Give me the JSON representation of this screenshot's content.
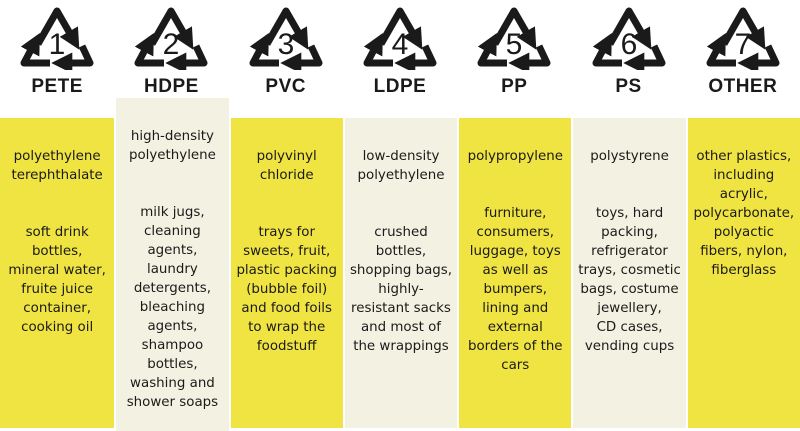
{
  "colors": {
    "yellow": "#f0e442",
    "light": "#f3f1e2",
    "icon": "#1a1a1a"
  },
  "plastics": [
    {
      "number": "1",
      "code": "PETE",
      "name": "polyethylene\nterephthalate",
      "uses": "soft drink\nbottles,\nmineral water,\nfruite juice\ncontainer,\ncooking oil"
    },
    {
      "number": "2",
      "code": "HDPE",
      "name": "high-density\npolyethylene",
      "uses": "milk jugs,\ncleaning\nagents,\nlaundry\ndetergents,\nbleaching\nagents,\nshampoo\nbottles,\nwashing and\nshower soaps"
    },
    {
      "number": "3",
      "code": "PVC",
      "name": "polyvinyl\nchloride",
      "uses": "trays for\nsweets, fruit,\nplastic packing\n(bubble foil)\nand food foils\nto wrap the\nfoodstuff"
    },
    {
      "number": "4",
      "code": "LDPE",
      "name": "low-density\npolyethylene",
      "uses": "crushed\nbottles,\nshopping bags,\nhighly-\nresistant sacks\nand most of\nthe wrappings"
    },
    {
      "number": "5",
      "code": "PP",
      "name": "polypropylene",
      "uses": "furniture,\nconsumers,\nluggage, toys\nas well as\nbumpers,\nlining and\nexternal\nborders of the\ncars"
    },
    {
      "number": "6",
      "code": "PS",
      "name": "polystyrene",
      "uses": "toys, hard\npacking,\nrefrigerator\ntrays, cosmetic\nbags, costume\njewellery,\nCD cases,\nvending cups"
    },
    {
      "number": "7",
      "code": "OTHER",
      "name": "other plastics,\nincluding\nacrylic,\npolycarbonate,\npolyactic\nfibers, nylon,\nfiberglass",
      "uses": ""
    }
  ]
}
